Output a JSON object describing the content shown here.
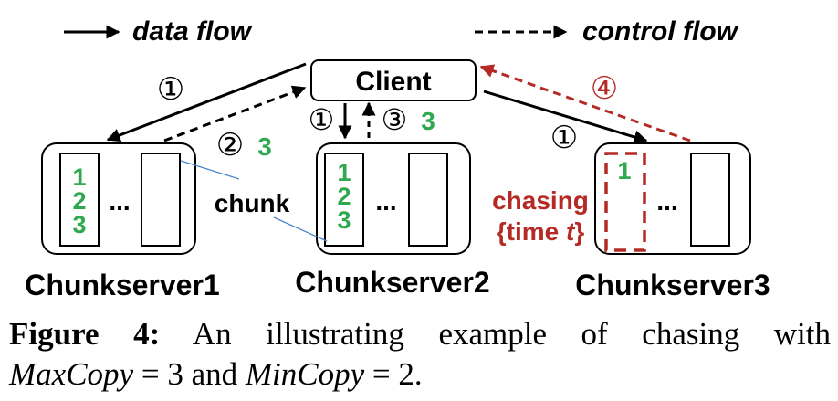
{
  "legend": {
    "data_flow": "data flow",
    "control_flow": "control flow"
  },
  "client": {
    "label": "Client"
  },
  "servers": [
    {
      "name": "Chunkserver1",
      "chunks": [
        "1",
        "2",
        "3"
      ],
      "ellipsis": "..."
    },
    {
      "name": "Chunkserver2",
      "chunks": [
        "1",
        "2",
        "3"
      ],
      "ellipsis": "..."
    },
    {
      "name": "Chunkserver3",
      "chunks": [
        "1"
      ],
      "ellipsis": "..."
    }
  ],
  "steps": {
    "s1_left": "①",
    "s2": "②",
    "s2_count": "3",
    "s1_mid": "①",
    "s3": "③",
    "s3_count": "3",
    "s1_right": "①",
    "s4": "④"
  },
  "labels": {
    "chunk": "chunk",
    "chasing_line1": "chasing",
    "chasing_line2_prefix": "{time ",
    "chasing_line2_var": "t",
    "chasing_line2_suffix": "}"
  },
  "caption": {
    "figure_label": "Figure 4:",
    "text1": "An illustrating example of chasing with",
    "maxcopy_name": "MaxCopy",
    "maxcopy_eq": " = 3 and ",
    "mincopy_name": "MinCopy",
    "mincopy_eq": " = 2."
  },
  "colors": {
    "green": "#2fa84f",
    "red": "#b52a24",
    "blue": "#4a86c8",
    "black": "#000000"
  }
}
